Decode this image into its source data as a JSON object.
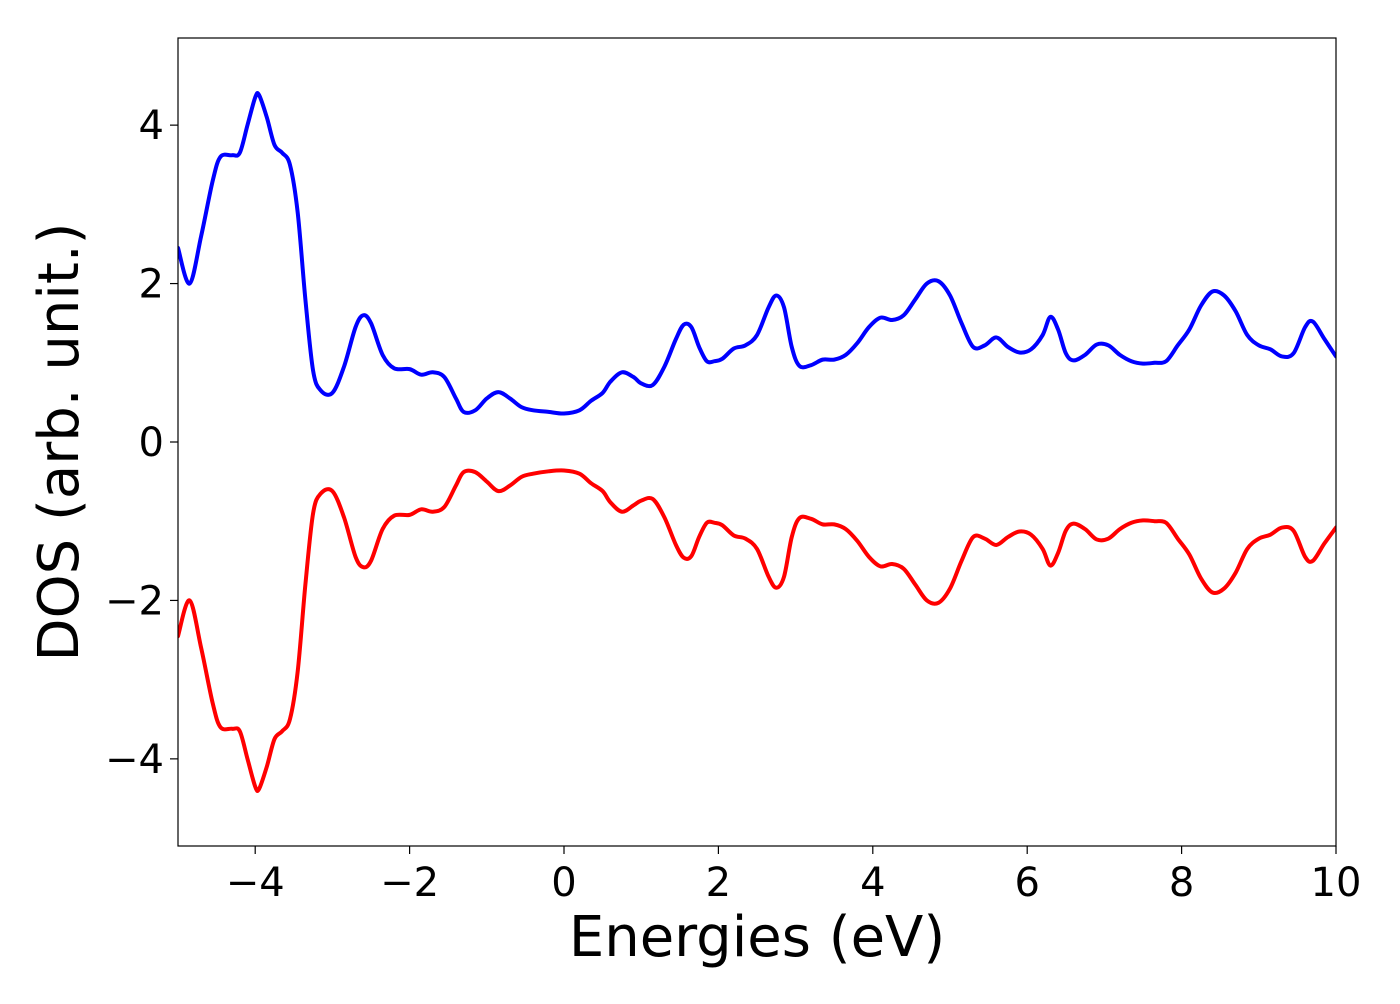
{
  "chart_data": {
    "type": "line",
    "title": "",
    "xlabel": "Energies (eV)",
    "ylabel": "DOS (arb. unit.)",
    "xlim": [
      -5,
      10
    ],
    "ylim": [
      -5.1,
      5.1
    ],
    "grid": false,
    "legend": "none",
    "x_ticks": [
      -4,
      -2,
      0,
      2,
      4,
      6,
      8,
      10
    ],
    "y_ticks": [
      -4,
      -2,
      0,
      2,
      4
    ],
    "x_tick_labels": [
      "−4",
      "−2",
      "0",
      "2",
      "4",
      "6",
      "8",
      "10"
    ],
    "y_tick_labels": [
      "−4",
      "−2",
      "0",
      "2",
      "4"
    ],
    "series": [
      {
        "color": "#0000ff",
        "points": [
          [
            -5.0,
            2.45
          ],
          [
            -4.85,
            2.0
          ],
          [
            -4.7,
            2.6
          ],
          [
            -4.55,
            3.3
          ],
          [
            -4.45,
            3.6
          ],
          [
            -4.3,
            3.62
          ],
          [
            -4.2,
            3.65
          ],
          [
            -4.1,
            4.0
          ],
          [
            -4.0,
            4.35
          ],
          [
            -3.95,
            4.38
          ],
          [
            -3.85,
            4.1
          ],
          [
            -3.75,
            3.75
          ],
          [
            -3.65,
            3.65
          ],
          [
            -3.55,
            3.5
          ],
          [
            -3.45,
            2.9
          ],
          [
            -3.35,
            1.8
          ],
          [
            -3.25,
            0.9
          ],
          [
            -3.15,
            0.65
          ],
          [
            -3.0,
            0.62
          ],
          [
            -2.85,
            0.95
          ],
          [
            -2.7,
            1.45
          ],
          [
            -2.6,
            1.6
          ],
          [
            -2.5,
            1.5
          ],
          [
            -2.35,
            1.1
          ],
          [
            -2.2,
            0.93
          ],
          [
            -2.0,
            0.92
          ],
          [
            -1.85,
            0.85
          ],
          [
            -1.7,
            0.88
          ],
          [
            -1.55,
            0.82
          ],
          [
            -1.4,
            0.55
          ],
          [
            -1.3,
            0.38
          ],
          [
            -1.15,
            0.4
          ],
          [
            -1.0,
            0.55
          ],
          [
            -0.85,
            0.63
          ],
          [
            -0.7,
            0.55
          ],
          [
            -0.55,
            0.44
          ],
          [
            -0.4,
            0.4
          ],
          [
            -0.2,
            0.38
          ],
          [
            0.0,
            0.36
          ],
          [
            0.2,
            0.4
          ],
          [
            0.35,
            0.52
          ],
          [
            0.5,
            0.62
          ],
          [
            0.6,
            0.76
          ],
          [
            0.75,
            0.88
          ],
          [
            0.9,
            0.82
          ],
          [
            1.0,
            0.74
          ],
          [
            1.15,
            0.72
          ],
          [
            1.3,
            0.95
          ],
          [
            1.45,
            1.3
          ],
          [
            1.55,
            1.48
          ],
          [
            1.65,
            1.45
          ],
          [
            1.75,
            1.2
          ],
          [
            1.85,
            1.02
          ],
          [
            1.95,
            1.02
          ],
          [
            2.05,
            1.05
          ],
          [
            2.2,
            1.18
          ],
          [
            2.35,
            1.22
          ],
          [
            2.5,
            1.35
          ],
          [
            2.65,
            1.7
          ],
          [
            2.75,
            1.85
          ],
          [
            2.85,
            1.7
          ],
          [
            2.95,
            1.2
          ],
          [
            3.05,
            0.96
          ],
          [
            3.2,
            0.97
          ],
          [
            3.35,
            1.04
          ],
          [
            3.5,
            1.04
          ],
          [
            3.65,
            1.1
          ],
          [
            3.8,
            1.25
          ],
          [
            3.95,
            1.45
          ],
          [
            4.1,
            1.57
          ],
          [
            4.25,
            1.54
          ],
          [
            4.4,
            1.6
          ],
          [
            4.55,
            1.8
          ],
          [
            4.7,
            2.0
          ],
          [
            4.85,
            2.03
          ],
          [
            5.0,
            1.85
          ],
          [
            5.15,
            1.5
          ],
          [
            5.3,
            1.2
          ],
          [
            5.45,
            1.22
          ],
          [
            5.6,
            1.32
          ],
          [
            5.75,
            1.2
          ],
          [
            5.9,
            1.13
          ],
          [
            6.05,
            1.17
          ],
          [
            6.2,
            1.35
          ],
          [
            6.3,
            1.58
          ],
          [
            6.4,
            1.42
          ],
          [
            6.5,
            1.12
          ],
          [
            6.6,
            1.03
          ],
          [
            6.75,
            1.1
          ],
          [
            6.9,
            1.23
          ],
          [
            7.05,
            1.22
          ],
          [
            7.2,
            1.1
          ],
          [
            7.35,
            1.02
          ],
          [
            7.5,
            0.99
          ],
          [
            7.65,
            1.0
          ],
          [
            7.8,
            1.02
          ],
          [
            7.95,
            1.22
          ],
          [
            8.1,
            1.42
          ],
          [
            8.25,
            1.72
          ],
          [
            8.4,
            1.9
          ],
          [
            8.55,
            1.85
          ],
          [
            8.7,
            1.65
          ],
          [
            8.85,
            1.35
          ],
          [
            9.0,
            1.22
          ],
          [
            9.15,
            1.17
          ],
          [
            9.3,
            1.08
          ],
          [
            9.45,
            1.12
          ],
          [
            9.6,
            1.45
          ],
          [
            9.7,
            1.52
          ],
          [
            9.85,
            1.3
          ],
          [
            10.0,
            1.08
          ]
        ]
      },
      {
        "color": "#ff0000",
        "points": [
          [
            -5.0,
            -2.45
          ],
          [
            -4.85,
            -2.0
          ],
          [
            -4.7,
            -2.6
          ],
          [
            -4.55,
            -3.3
          ],
          [
            -4.45,
            -3.6
          ],
          [
            -4.3,
            -3.62
          ],
          [
            -4.2,
            -3.65
          ],
          [
            -4.1,
            -4.0
          ],
          [
            -4.0,
            -4.35
          ],
          [
            -3.95,
            -4.38
          ],
          [
            -3.85,
            -4.1
          ],
          [
            -3.75,
            -3.75
          ],
          [
            -3.65,
            -3.65
          ],
          [
            -3.55,
            -3.5
          ],
          [
            -3.45,
            -2.9
          ],
          [
            -3.35,
            -1.8
          ],
          [
            -3.25,
            -0.9
          ],
          [
            -3.15,
            -0.65
          ],
          [
            -3.0,
            -0.62
          ],
          [
            -2.85,
            -0.95
          ],
          [
            -2.7,
            -1.45
          ],
          [
            -2.6,
            -1.58
          ],
          [
            -2.5,
            -1.5
          ],
          [
            -2.35,
            -1.1
          ],
          [
            -2.2,
            -0.93
          ],
          [
            -2.0,
            -0.92
          ],
          [
            -1.85,
            -0.85
          ],
          [
            -1.7,
            -0.88
          ],
          [
            -1.55,
            -0.82
          ],
          [
            -1.4,
            -0.55
          ],
          [
            -1.3,
            -0.38
          ],
          [
            -1.15,
            -0.38
          ],
          [
            -1.0,
            -0.5
          ],
          [
            -0.85,
            -0.62
          ],
          [
            -0.7,
            -0.55
          ],
          [
            -0.55,
            -0.44
          ],
          [
            -0.4,
            -0.4
          ],
          [
            -0.2,
            -0.37
          ],
          [
            0.0,
            -0.36
          ],
          [
            0.2,
            -0.4
          ],
          [
            0.35,
            -0.52
          ],
          [
            0.5,
            -0.62
          ],
          [
            0.6,
            -0.76
          ],
          [
            0.75,
            -0.88
          ],
          [
            0.9,
            -0.8
          ],
          [
            1.0,
            -0.74
          ],
          [
            1.15,
            -0.72
          ],
          [
            1.3,
            -0.95
          ],
          [
            1.45,
            -1.3
          ],
          [
            1.55,
            -1.46
          ],
          [
            1.65,
            -1.44
          ],
          [
            1.75,
            -1.2
          ],
          [
            1.85,
            -1.02
          ],
          [
            1.95,
            -1.02
          ],
          [
            2.05,
            -1.05
          ],
          [
            2.2,
            -1.18
          ],
          [
            2.35,
            -1.22
          ],
          [
            2.5,
            -1.35
          ],
          [
            2.65,
            -1.7
          ],
          [
            2.75,
            -1.84
          ],
          [
            2.85,
            -1.7
          ],
          [
            2.95,
            -1.2
          ],
          [
            3.05,
            -0.96
          ],
          [
            3.2,
            -0.97
          ],
          [
            3.35,
            -1.04
          ],
          [
            3.5,
            -1.04
          ],
          [
            3.65,
            -1.1
          ],
          [
            3.8,
            -1.25
          ],
          [
            3.95,
            -1.45
          ],
          [
            4.1,
            -1.57
          ],
          [
            4.25,
            -1.54
          ],
          [
            4.4,
            -1.6
          ],
          [
            4.55,
            -1.8
          ],
          [
            4.7,
            -2.0
          ],
          [
            4.85,
            -2.03
          ],
          [
            5.0,
            -1.85
          ],
          [
            5.15,
            -1.5
          ],
          [
            5.3,
            -1.2
          ],
          [
            5.45,
            -1.22
          ],
          [
            5.6,
            -1.3
          ],
          [
            5.75,
            -1.2
          ],
          [
            5.9,
            -1.13
          ],
          [
            6.05,
            -1.17
          ],
          [
            6.2,
            -1.35
          ],
          [
            6.3,
            -1.56
          ],
          [
            6.4,
            -1.4
          ],
          [
            6.5,
            -1.12
          ],
          [
            6.6,
            -1.03
          ],
          [
            6.75,
            -1.1
          ],
          [
            6.9,
            -1.23
          ],
          [
            7.05,
            -1.22
          ],
          [
            7.2,
            -1.1
          ],
          [
            7.35,
            -1.02
          ],
          [
            7.5,
            -0.99
          ],
          [
            7.65,
            -1.0
          ],
          [
            7.8,
            -1.02
          ],
          [
            7.95,
            -1.22
          ],
          [
            8.1,
            -1.42
          ],
          [
            8.25,
            -1.72
          ],
          [
            8.4,
            -1.9
          ],
          [
            8.55,
            -1.85
          ],
          [
            8.7,
            -1.65
          ],
          [
            8.85,
            -1.35
          ],
          [
            9.0,
            -1.22
          ],
          [
            9.15,
            -1.17
          ],
          [
            9.3,
            -1.08
          ],
          [
            9.45,
            -1.12
          ],
          [
            9.6,
            -1.45
          ],
          [
            9.7,
            -1.5
          ],
          [
            9.85,
            -1.28
          ],
          [
            10.0,
            -1.08
          ]
        ]
      }
    ]
  }
}
